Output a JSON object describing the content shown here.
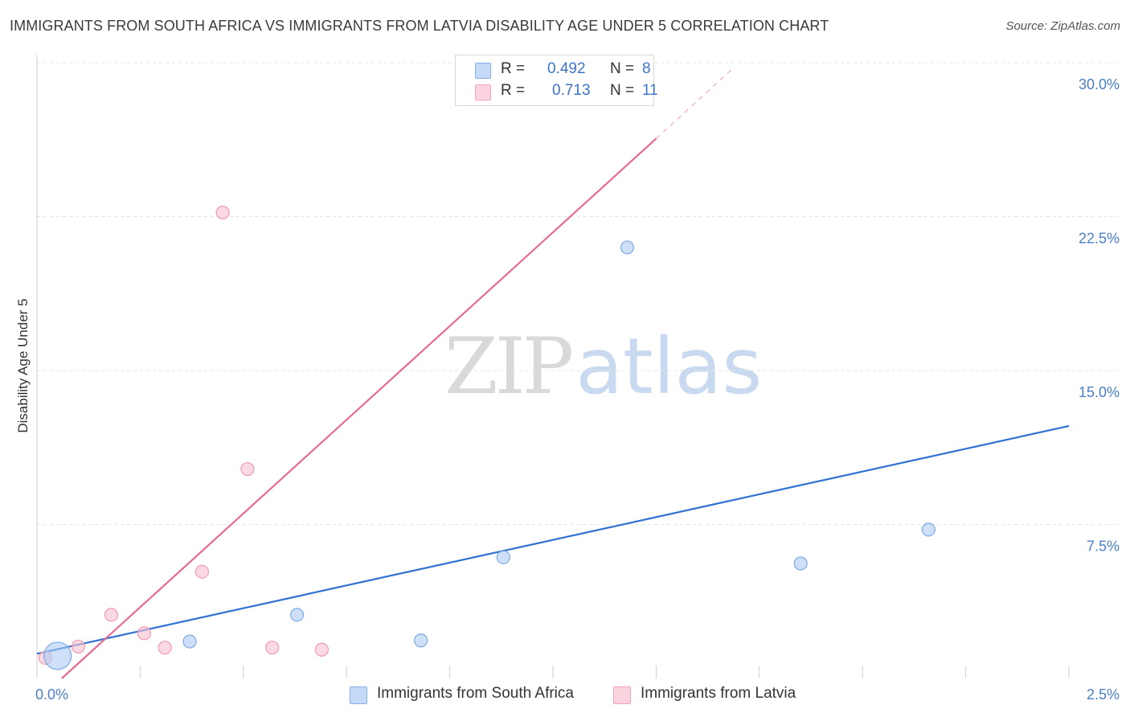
{
  "header": {
    "title": "IMMIGRANTS FROM SOUTH AFRICA VS IMMIGRANTS FROM LATVIA DISABILITY AGE UNDER 5 CORRELATION CHART",
    "source": "Source: ZipAtlas.com"
  },
  "watermark": {
    "part1": "ZIP",
    "part2": "atlas"
  },
  "legend_top": {
    "rows": [
      {
        "r_label": "R =",
        "r_value": "0.492",
        "n_label": "N =",
        "n_value": "8",
        "color": "#aecbf2"
      },
      {
        "r_label": "R =",
        "r_value": "0.713",
        "n_label": "N =",
        "n_value": "11",
        "color": "#f8bfcf"
      }
    ]
  },
  "chart_data": {
    "type": "scatter",
    "title": "IMMIGRANTS FROM SOUTH AFRICA VS IMMIGRANTS FROM LATVIA DISABILITY AGE UNDER 5 CORRELATION CHART",
    "xlabel": "",
    "ylabel": "Disability Age Under 5",
    "xlim": [
      0,
      2.5
    ],
    "ylim": [
      0,
      30
    ],
    "x_ticks": [
      "0.0%",
      "2.5%"
    ],
    "y_ticks": [
      {
        "value": 7.5,
        "label": "7.5%"
      },
      {
        "value": 15.0,
        "label": "15.0%"
      },
      {
        "value": 22.5,
        "label": "22.5%"
      },
      {
        "value": 30.0,
        "label": "30.0%"
      }
    ],
    "grid": true,
    "legend_position": "bottom",
    "series": [
      {
        "name": "Immigrants from South Africa",
        "color": "#aecbf2",
        "stroke": "#7eaae4",
        "line_color": "#2f72d2",
        "points": [
          {
            "x": 0.05,
            "y": 1.1,
            "size": "large"
          },
          {
            "x": 0.37,
            "y": 1.8
          },
          {
            "x": 0.63,
            "y": 3.1
          },
          {
            "x": 0.93,
            "y": 1.85
          },
          {
            "x": 1.13,
            "y": 5.9
          },
          {
            "x": 1.43,
            "y": 21.0
          },
          {
            "x": 1.85,
            "y": 5.6
          },
          {
            "x": 2.16,
            "y": 7.25
          }
        ],
        "trend": {
          "x0": 0.0,
          "y0": 1.2,
          "x1": 2.5,
          "y1": 12.3
        }
      },
      {
        "name": "Immigrants from Latvia",
        "color": "#f8bfcf",
        "stroke": "#ef9ab2",
        "line_color": "#e56b93",
        "points": [
          {
            "x": 0.02,
            "y": 1.0
          },
          {
            "x": 0.1,
            "y": 1.55
          },
          {
            "x": 0.18,
            "y": 3.1
          },
          {
            "x": 0.26,
            "y": 2.2
          },
          {
            "x": 0.31,
            "y": 1.5
          },
          {
            "x": 0.4,
            "y": 5.2
          },
          {
            "x": 0.45,
            "y": 22.7
          },
          {
            "x": 0.51,
            "y": 10.2
          },
          {
            "x": 0.57,
            "y": 1.5
          },
          {
            "x": 0.69,
            "y": 1.4
          },
          {
            "x": 1.38,
            "y": 28.4
          }
        ],
        "trend": {
          "x0": 0.06,
          "y0": 0.0,
          "x1": 1.5,
          "y1": 26.3
        },
        "trend_dashed": {
          "x0": 1.5,
          "y0": 26.3,
          "x1": 1.69,
          "y1": 29.8
        }
      }
    ]
  }
}
